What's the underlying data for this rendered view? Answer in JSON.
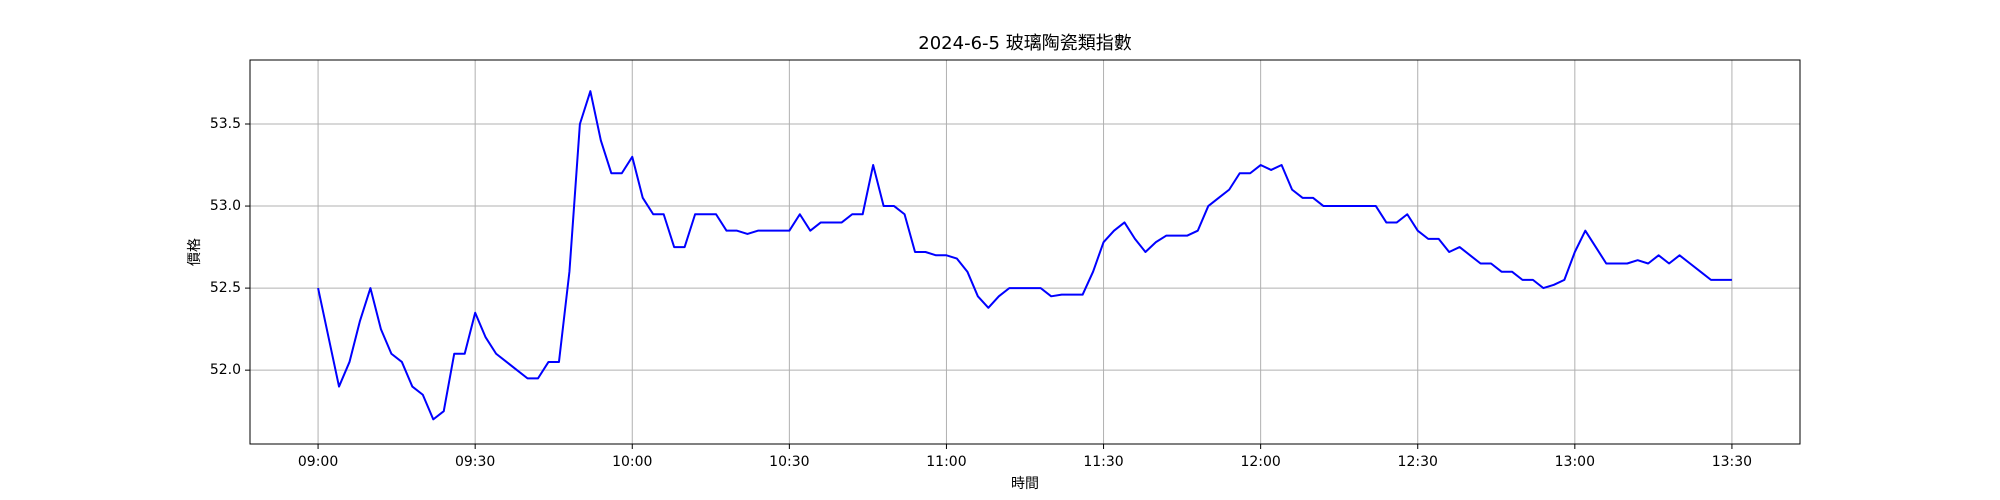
{
  "chart_data": {
    "type": "line",
    "title": "2024-6-5 玻璃陶瓷類指數",
    "xlabel": "時間",
    "ylabel": "價格",
    "x": [
      "09:00",
      "09:02",
      "09:04",
      "09:06",
      "09:08",
      "09:10",
      "09:12",
      "09:14",
      "09:16",
      "09:18",
      "09:20",
      "09:22",
      "09:24",
      "09:26",
      "09:28",
      "09:30",
      "09:32",
      "09:34",
      "09:36",
      "09:38",
      "09:40",
      "09:42",
      "09:44",
      "09:46",
      "09:48",
      "09:50",
      "09:52",
      "09:54",
      "09:56",
      "09:58",
      "10:00",
      "10:02",
      "10:04",
      "10:06",
      "10:08",
      "10:10",
      "10:12",
      "10:14",
      "10:16",
      "10:18",
      "10:20",
      "10:22",
      "10:24",
      "10:26",
      "10:28",
      "10:30",
      "10:32",
      "10:34",
      "10:36",
      "10:38",
      "10:40",
      "10:42",
      "10:44",
      "10:46",
      "10:48",
      "10:50",
      "10:52",
      "10:54",
      "10:56",
      "10:58",
      "11:00",
      "11:02",
      "11:04",
      "11:06",
      "11:08",
      "11:10",
      "11:12",
      "11:14",
      "11:16",
      "11:18",
      "11:20",
      "11:22",
      "11:24",
      "11:26",
      "11:28",
      "11:30",
      "11:32",
      "11:34",
      "11:36",
      "11:38",
      "11:40",
      "11:42",
      "11:44",
      "11:46",
      "11:48",
      "11:50",
      "11:52",
      "11:54",
      "11:56",
      "11:58",
      "12:00",
      "12:02",
      "12:04",
      "12:06",
      "12:08",
      "12:10",
      "12:12",
      "12:14",
      "12:16",
      "12:18",
      "12:20",
      "12:22",
      "12:24",
      "12:26",
      "12:28",
      "12:30",
      "12:32",
      "12:34",
      "12:36",
      "12:38",
      "12:40",
      "12:42",
      "12:44",
      "12:46",
      "12:48",
      "12:50",
      "12:52",
      "12:54",
      "12:56",
      "12:58",
      "13:00",
      "13:02",
      "13:04",
      "13:06",
      "13:08",
      "13:10",
      "13:12",
      "13:14",
      "13:16",
      "13:18",
      "13:20",
      "13:22",
      "13:24",
      "13:26",
      "13:28",
      "13:30"
    ],
    "series": [
      {
        "color": "#0000ff",
        "values": [
          52.5,
          52.2,
          51.9,
          52.05,
          52.3,
          52.5,
          52.25,
          52.1,
          52.05,
          51.9,
          51.85,
          51.7,
          51.75,
          52.1,
          52.1,
          52.35,
          52.2,
          52.1,
          52.05,
          52.0,
          51.95,
          51.95,
          52.05,
          52.05,
          52.6,
          53.5,
          53.7,
          53.4,
          53.2,
          53.2,
          53.3,
          53.05,
          52.95,
          52.95,
          52.75,
          52.75,
          52.95,
          52.95,
          52.95,
          52.85,
          52.85,
          52.83,
          52.85,
          52.85,
          52.85,
          52.85,
          52.95,
          52.85,
          52.9,
          52.9,
          52.9,
          52.95,
          52.95,
          53.25,
          53.0,
          53.0,
          52.95,
          52.72,
          52.72,
          52.7,
          52.7,
          52.68,
          52.6,
          52.45,
          52.38,
          52.45,
          52.5,
          52.5,
          52.5,
          52.5,
          52.45,
          52.46,
          52.46,
          52.46,
          52.6,
          52.78,
          52.85,
          52.9,
          52.8,
          52.72,
          52.78,
          52.82,
          52.82,
          52.82,
          52.85,
          53.0,
          53.05,
          53.1,
          53.2,
          53.2,
          53.25,
          53.22,
          53.25,
          53.1,
          53.05,
          53.05,
          53.0,
          53.0,
          53.0,
          53.0,
          53.0,
          53.0,
          52.9,
          52.9,
          52.95,
          52.85,
          52.8,
          52.8,
          52.72,
          52.75,
          52.7,
          52.65,
          52.65,
          52.6,
          52.6,
          52.55,
          52.55,
          52.5,
          52.52,
          52.55,
          52.72,
          52.85,
          52.75,
          52.65,
          52.65,
          52.65,
          52.67,
          52.65,
          52.7,
          52.65,
          52.7,
          52.65,
          52.6,
          52.55,
          52.55,
          52.55
        ]
      }
    ],
    "xlim": [
      "08:47",
      "13:43"
    ],
    "xticks": [
      "09:00",
      "09:30",
      "10:00",
      "10:30",
      "11:00",
      "11:30",
      "12:00",
      "12:30",
      "13:00",
      "13:30"
    ],
    "ylim": [
      51.55,
      53.89
    ],
    "yticks": [
      {
        "value": 52,
        "label": "52.0"
      },
      52.5,
      {
        "value": 53,
        "label": "53.0"
      },
      53.5
    ],
    "grid": true
  }
}
